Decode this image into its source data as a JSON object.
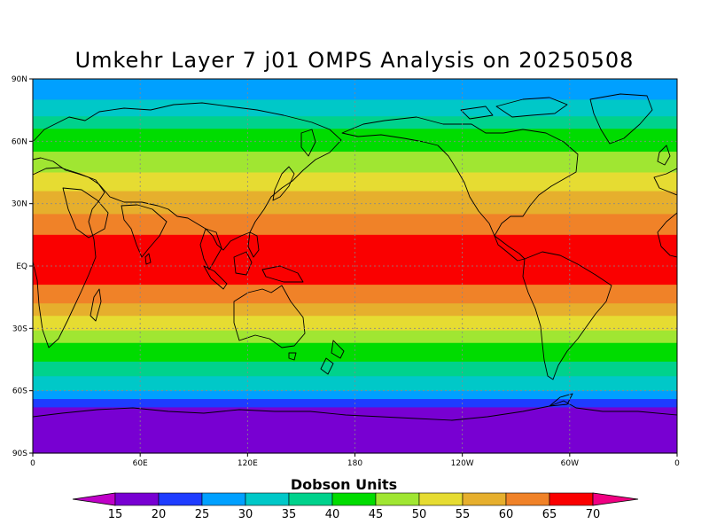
{
  "title": "Umkehr Layer 7 j01 OMPS Analysis on 20250508",
  "map": {
    "projection": "equirectangular",
    "lon_range": [
      0,
      360
    ],
    "lat_range": [
      -90,
      90
    ],
    "grid": "dotted",
    "y_ticks": [
      {
        "lat": 90,
        "label": "90N"
      },
      {
        "lat": 60,
        "label": "60N"
      },
      {
        "lat": 30,
        "label": "30N"
      },
      {
        "lat": 0,
        "label": "EQ"
      },
      {
        "lat": -30,
        "label": "30S"
      },
      {
        "lat": -60,
        "label": "60S"
      },
      {
        "lat": -90,
        "label": "90S"
      }
    ],
    "x_ticks": [
      {
        "lon": 0,
        "label": "0"
      },
      {
        "lon": 60,
        "label": "60E"
      },
      {
        "lon": 120,
        "label": "120E"
      },
      {
        "lon": 180,
        "label": "180"
      },
      {
        "lon": 240,
        "label": "120W"
      },
      {
        "lon": 300,
        "label": "60W"
      },
      {
        "lon": 360,
        "label": "0"
      }
    ],
    "bands": [
      {
        "lat_top": 90,
        "lat_bottom": 80,
        "value_range": "25-30"
      },
      {
        "lat_top": 80,
        "lat_bottom": 72,
        "value_range": "30-35"
      },
      {
        "lat_top": 72,
        "lat_bottom": 66,
        "value_range": "35-40"
      },
      {
        "lat_top": 66,
        "lat_bottom": 55,
        "value_range": "40-45"
      },
      {
        "lat_top": 55,
        "lat_bottom": 45,
        "value_range": "45-50"
      },
      {
        "lat_top": 45,
        "lat_bottom": 36,
        "value_range": "50-55"
      },
      {
        "lat_top": 36,
        "lat_bottom": 25,
        "value_range": "55-60"
      },
      {
        "lat_top": 25,
        "lat_bottom": 15,
        "value_range": "60-65"
      },
      {
        "lat_top": 15,
        "lat_bottom": -9,
        "value_range": "65-70"
      },
      {
        "lat_top": -9,
        "lat_bottom": -18,
        "value_range": "60-65"
      },
      {
        "lat_top": -18,
        "lat_bottom": -24,
        "value_range": "55-60"
      },
      {
        "lat_top": -24,
        "lat_bottom": -31,
        "value_range": "50-55"
      },
      {
        "lat_top": -31,
        "lat_bottom": -37,
        "value_range": "45-50"
      },
      {
        "lat_top": -37,
        "lat_bottom": -46,
        "value_range": "40-45"
      },
      {
        "lat_top": -46,
        "lat_bottom": -53,
        "value_range": "35-40"
      },
      {
        "lat_top": -53,
        "lat_bottom": -60,
        "value_range": "30-35"
      },
      {
        "lat_top": -60,
        "lat_bottom": -64,
        "value_range": "25-30"
      },
      {
        "lat_top": -64,
        "lat_bottom": -68,
        "value_range": "20-25"
      },
      {
        "lat_top": -68,
        "lat_bottom": -90,
        "value_range": "15-20"
      }
    ]
  },
  "colorbar": {
    "title": "Dobson Units",
    "labels": [
      "15",
      "20",
      "25",
      "30",
      "35",
      "40",
      "45",
      "50",
      "55",
      "60",
      "65",
      "70"
    ],
    "colors": {
      "lt15": "#c000c8",
      "15-20": "#7800d2",
      "20-25": "#1e3cff",
      "25-30": "#00a0ff",
      "30-35": "#00c8c8",
      "35-40": "#00d28c",
      "40-45": "#00dc00",
      "45-50": "#a0e632",
      "50-55": "#e6dc32",
      "55-60": "#e6af2d",
      "60-65": "#f08228",
      "65-70": "#fa0000",
      "gt70": "#f00082"
    }
  }
}
